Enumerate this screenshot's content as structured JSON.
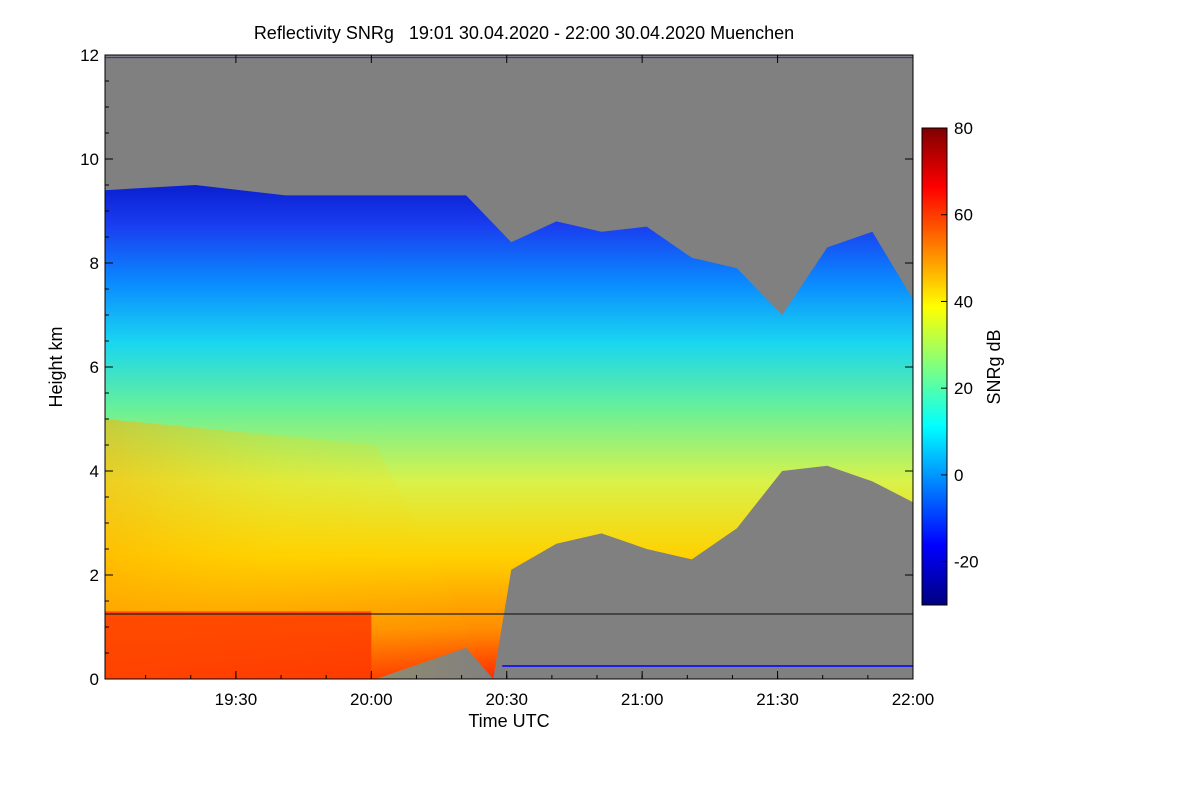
{
  "chart_data": {
    "type": "heatmap",
    "title": "Reflectivity SNRg   19:01 30.04.2020 - 22:00 30.04.2020 Muenchen",
    "xlabel": "Time UTC",
    "ylabel": "Height km",
    "x_ticks": [
      "19:30",
      "20:00",
      "20:30",
      "21:00",
      "21:30",
      "22:00"
    ],
    "x_range_min": [
      0,
      179
    ],
    "y_ticks": [
      "0",
      "2",
      "4",
      "6",
      "8",
      "10",
      "12"
    ],
    "ylim": [
      0,
      12
    ],
    "colorbar": {
      "label": "SNRg dB",
      "range": [
        -30,
        80
      ],
      "ticks": [
        "-20",
        "0",
        "20",
        "40",
        "60",
        "80"
      ],
      "tick_values": [
        -20,
        0,
        20,
        40,
        60,
        80
      ],
      "colors": [
        "#00007f",
        "#0000ff",
        "#007fff",
        "#00ffff",
        "#7fff7f",
        "#ffff00",
        "#ff7f00",
        "#ff0000",
        "#7f0000"
      ]
    },
    "no_signal_color": "#808080",
    "echo_top_km": {
      "time_min": [
        0,
        20,
        40,
        60,
        80,
        90,
        100,
        110,
        120,
        130,
        140,
        150,
        160,
        170,
        179
      ],
      "height": [
        9.4,
        9.5,
        9.3,
        9.3,
        9.3,
        8.4,
        8.8,
        8.6,
        8.7,
        8.1,
        7.9,
        7.0,
        8.3,
        8.6,
        7.3
      ]
    },
    "echo_base_km": {
      "time_min": [
        0,
        60,
        80,
        86,
        90,
        100,
        110,
        120,
        130,
        140,
        150,
        160,
        170,
        179
      ],
      "height": [
        0.0,
        0.0,
        0.6,
        0.0,
        2.1,
        2.6,
        2.8,
        2.5,
        2.3,
        2.9,
        4.0,
        4.1,
        3.8,
        3.4
      ]
    },
    "boundary_layer_line_km": 1.25
  }
}
